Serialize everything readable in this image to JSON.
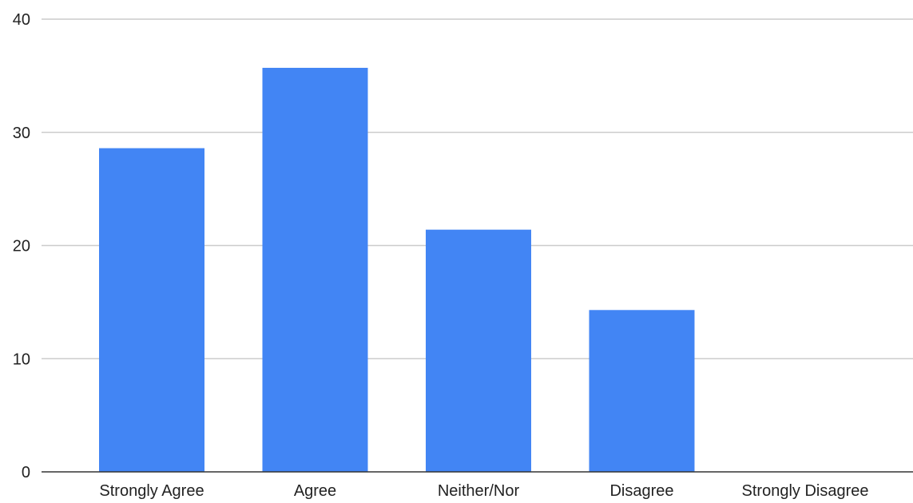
{
  "chart_data": {
    "type": "bar",
    "title": "",
    "xlabel": "",
    "ylabel": "",
    "categories": [
      "Strongly Agree",
      "Agree",
      "Neither/Nor",
      "Disagree",
      "Strongly Disagree"
    ],
    "values": [
      28.6,
      35.7,
      21.4,
      14.3,
      0
    ],
    "ylim": [
      0,
      40
    ],
    "yticks": [
      0,
      10,
      20,
      30,
      40
    ],
    "grid": true,
    "legend": "none",
    "bar_color": "#4285f4"
  }
}
